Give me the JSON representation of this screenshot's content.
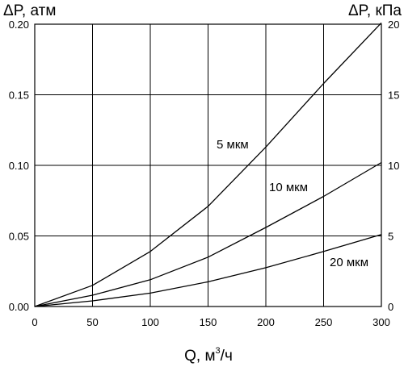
{
  "chart_data": {
    "type": "line",
    "left_axis_title": "ΔP, атм",
    "right_axis_title": "ΔP, кПа",
    "x_axis_title_main": "Q, м",
    "x_axis_title_sup": "3",
    "x_axis_title_tail": "/ч",
    "xlim": [
      0,
      300
    ],
    "ylim": [
      0,
      0.2
    ],
    "y2lim": [
      0,
      20
    ],
    "x_ticks": [
      "0",
      "50",
      "100",
      "150",
      "200",
      "250",
      "300"
    ],
    "y_ticks": [
      "0.00",
      "0.05",
      "0.10",
      "0.15",
      "0.20"
    ],
    "y2_ticks": [
      "0",
      "5",
      "10",
      "15",
      "20"
    ],
    "grid": "major",
    "series": [
      {
        "name": "5 мкм",
        "x": [
          0,
          50,
          100,
          150,
          200,
          250,
          300
        ],
        "y": [
          0,
          0.015,
          0.039,
          0.071,
          0.113,
          0.158,
          0.201
        ]
      },
      {
        "name": "10 мкм",
        "x": [
          0,
          50,
          100,
          150,
          200,
          250,
          300
        ],
        "y": [
          0,
          0.008,
          0.019,
          0.035,
          0.056,
          0.078,
          0.102
        ]
      },
      {
        "name": "20 мкм",
        "x": [
          0,
          50,
          100,
          150,
          200,
          250,
          300
        ],
        "y": [
          0,
          0.004,
          0.0095,
          0.0175,
          0.0275,
          0.039,
          0.051
        ]
      }
    ]
  }
}
